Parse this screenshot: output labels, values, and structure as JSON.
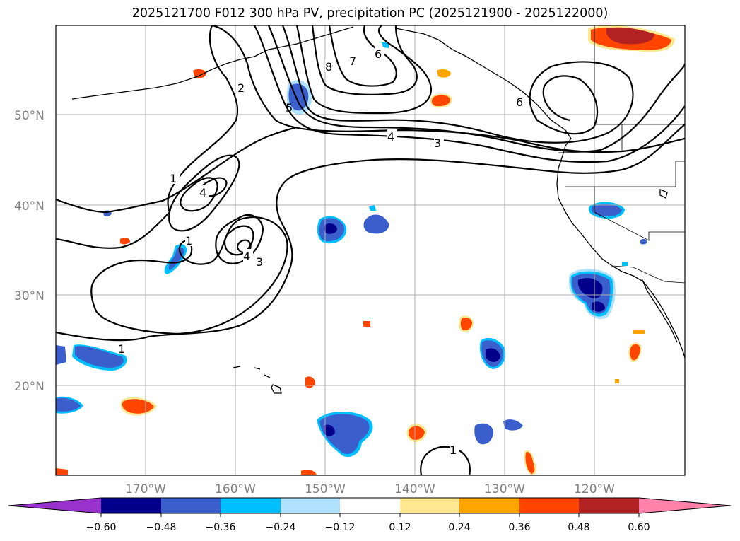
{
  "title": "2025121700 F012 300 hPa PV, precipitation PC (2025121900 - 2025122000)",
  "map": {
    "lat_labels": [
      "50°N",
      "40°N",
      "30°N",
      "20°N"
    ],
    "lon_labels": [
      "170°W",
      "160°W",
      "150°W",
      "140°W",
      "130°W",
      "120°W"
    ],
    "contour_labels": [
      "1",
      "1",
      "1",
      "1",
      "2",
      "3",
      "3",
      "4",
      "4",
      "4",
      "5",
      "6",
      "6",
      "7",
      "8"
    ]
  },
  "colorbar": {
    "ticks": [
      "−0.60",
      "−0.48",
      "−0.36",
      "−0.24",
      "−0.12",
      "0.12",
      "0.24",
      "0.36",
      "0.48",
      "0.60"
    ],
    "colors": [
      "#9932cc",
      "#00008b",
      "#3a5fcd",
      "#00bfff",
      "#b0e2ff",
      "#ffffff",
      "#ffe88f",
      "#ffa500",
      "#ff4500",
      "#b22222",
      "#ff82ab"
    ]
  },
  "palette": {
    "deep_blue": "#00008b",
    "mid_blue": "#3a5fcd",
    "cyan": "#00bfff",
    "pale_blue": "#b0e2ff",
    "pale_yellow": "#ffe88f",
    "orange": "#ffa500",
    "red_orange": "#ff4500",
    "dark_red": "#b22222"
  }
}
